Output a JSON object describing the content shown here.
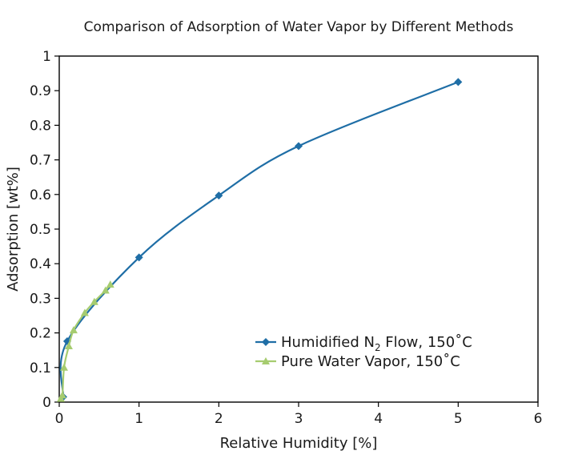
{
  "chart_data": {
    "type": "scatter",
    "title": "Comparison of Adsorption of Water Vapor by Different Methods",
    "xlabel": "Relative Humidity [%]",
    "ylabel": "Adsorption [wt%]",
    "xlim": [
      0,
      6
    ],
    "ylim": [
      0,
      1
    ],
    "x_ticks": [
      "0",
      "1",
      "2",
      "3",
      "4",
      "5",
      "6"
    ],
    "y_ticks": [
      "0",
      "0.1",
      "0.2",
      "0.3",
      "0.4",
      "0.5",
      "0.6",
      "0.7",
      "0.8",
      "0.9",
      "1"
    ],
    "grid": false,
    "legend_position": "bottom-right",
    "series": [
      {
        "name_main": "Humidified N",
        "name_sub": "2",
        "name_rest": " Flow, 150˚C",
        "color": "#1f6ea6",
        "marker": "diamond",
        "points": [
          {
            "x": 0.05,
            "y": 0.015
          },
          {
            "x": 0.1,
            "y": 0.176
          },
          {
            "x": 1.0,
            "y": 0.418
          },
          {
            "x": 2.0,
            "y": 0.597
          },
          {
            "x": 3.0,
            "y": 0.74
          },
          {
            "x": 5.0,
            "y": 0.925
          }
        ]
      },
      {
        "name": "Pure Water Vapor, 150˚C",
        "color": "#a6cc6f",
        "marker": "triangle",
        "points": [
          {
            "x": 0.02,
            "y": 0.01
          },
          {
            "x": 0.04,
            "y": 0.02
          },
          {
            "x": 0.06,
            "y": 0.1
          },
          {
            "x": 0.12,
            "y": 0.162
          },
          {
            "x": 0.18,
            "y": 0.208
          },
          {
            "x": 0.32,
            "y": 0.258
          },
          {
            "x": 0.44,
            "y": 0.29
          },
          {
            "x": 0.58,
            "y": 0.323
          },
          {
            "x": 0.64,
            "y": 0.34
          }
        ]
      }
    ]
  }
}
